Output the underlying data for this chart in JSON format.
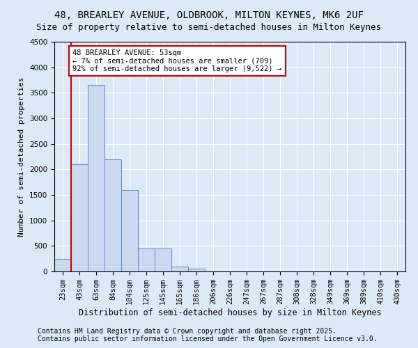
{
  "title": "48, BREARLEY AVENUE, OLDBROOK, MILTON KEYNES, MK6 2UF",
  "subtitle": "Size of property relative to semi-detached houses in Milton Keynes",
  "xlabel": "Distribution of semi-detached houses by size in Milton Keynes",
  "ylabel": "Number of semi-detached properties",
  "categories": [
    "23sqm",
    "43sqm",
    "63sqm",
    "84sqm",
    "104sqm",
    "125sqm",
    "145sqm",
    "165sqm",
    "186sqm",
    "206sqm",
    "226sqm",
    "247sqm",
    "267sqm",
    "287sqm",
    "308sqm",
    "328sqm",
    "349sqm",
    "369sqm",
    "389sqm",
    "410sqm",
    "430sqm"
  ],
  "values": [
    250,
    2100,
    3650,
    2200,
    1600,
    450,
    450,
    100,
    50,
    0,
    0,
    0,
    0,
    0,
    0,
    0,
    0,
    0,
    0,
    0,
    0
  ],
  "bar_color": "#c9d9f0",
  "bar_edge_color": "#5b8cc8",
  "vline_color": "#cc0000",
  "annotation_text": "48 BREARLEY AVENUE: 53sqm\n← 7% of semi-detached houses are smaller (709)\n92% of semi-detached houses are larger (9,522) →",
  "annotation_box_color": "#ffffff",
  "annotation_box_edge": "#cc0000",
  "ylim": [
    0,
    4500
  ],
  "yticks": [
    0,
    500,
    1000,
    1500,
    2000,
    2500,
    3000,
    3500,
    4000,
    4500
  ],
  "footer1": "Contains HM Land Registry data © Crown copyright and database right 2025.",
  "footer2": "Contains public sector information licensed under the Open Government Licence v3.0.",
  "background_color": "#dce9f7",
  "plot_background": "#dce9f7",
  "title_fontsize": 10,
  "subtitle_fontsize": 9,
  "axis_label_fontsize": 8.5,
  "tick_fontsize": 7.5,
  "annotation_fontsize": 7.5,
  "footer_fontsize": 7,
  "ylabel_fontsize": 8
}
